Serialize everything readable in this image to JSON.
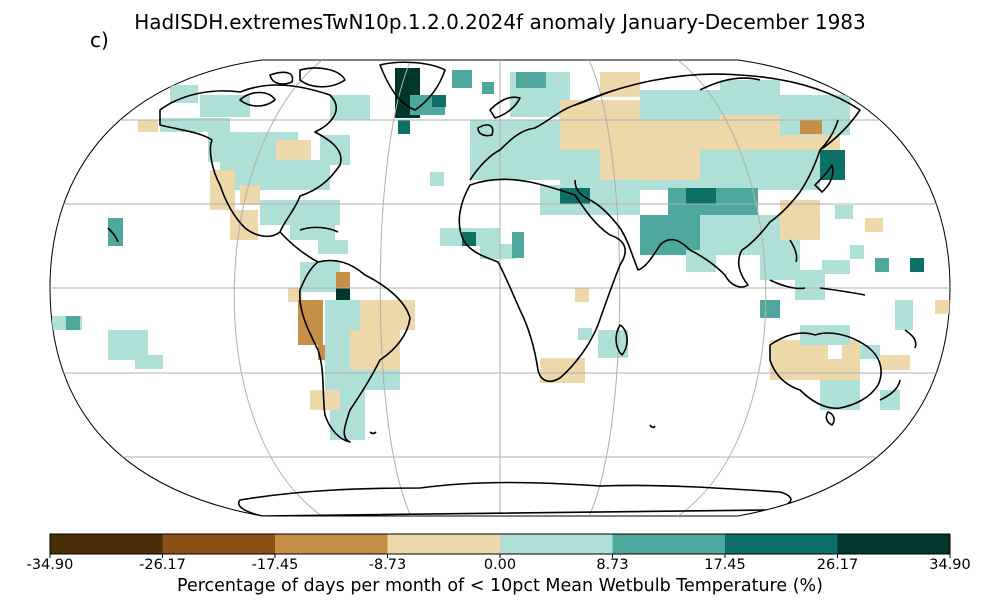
{
  "title": "HadISDH.extremesTwN10p.1.2.0.2024f anomaly January-December 1983",
  "panel_label": "c)",
  "colorbar": {
    "label": "Percentage of days per month of < 10pct Mean Wetbulb Temperature (%)",
    "ticks": [
      "-34.90",
      "-26.17",
      "-17.45",
      "-8.73",
      "0.00",
      "8.73",
      "17.45",
      "26.17",
      "34.90"
    ],
    "colors": [
      "#4a2e08",
      "#8b5015",
      "#c68f48",
      "#ecd8a8",
      "#afe0d8",
      "#4ea89e",
      "#0d7066",
      "#00362b"
    ]
  },
  "legend_colors": {
    "ocean": "#ffffff",
    "coastline": "#000000",
    "graticule": "#b0b0b0"
  }
}
